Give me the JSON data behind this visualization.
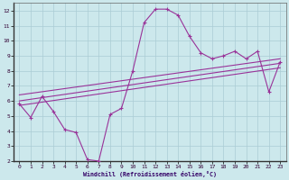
{
  "background_color": "#cce8ec",
  "grid_color": "#aaccd4",
  "line_color": "#993399",
  "xlabel": "Windchill (Refroidissement éolien,°C)",
  "xlim": [
    -0.5,
    23.5
  ],
  "ylim": [
    2,
    12.5
  ],
  "xticks": [
    0,
    1,
    2,
    3,
    4,
    5,
    6,
    7,
    8,
    9,
    10,
    11,
    12,
    13,
    14,
    15,
    16,
    17,
    18,
    19,
    20,
    21,
    22,
    23
  ],
  "yticks": [
    2,
    3,
    4,
    5,
    6,
    7,
    8,
    9,
    10,
    11,
    12
  ],
  "line1_x": [
    0,
    1,
    2,
    3,
    4,
    5,
    6,
    7,
    8,
    9,
    10,
    11,
    12,
    13,
    14,
    15,
    16,
    17,
    18,
    19,
    20,
    21,
    22,
    23
  ],
  "line1_y": [
    5.8,
    4.9,
    6.3,
    5.3,
    4.1,
    3.9,
    2.1,
    2.0,
    5.1,
    5.5,
    8.0,
    11.2,
    12.1,
    12.1,
    11.7,
    10.3,
    9.2,
    8.8,
    9.0,
    9.3,
    8.8,
    9.3,
    6.6,
    8.6
  ],
  "line2_x": [
    0,
    23
  ],
  "line2_y": [
    5.7,
    8.2
  ],
  "line3_x": [
    0,
    23
  ],
  "line3_y": [
    6.0,
    8.5
  ],
  "line4_x": [
    0,
    23
  ],
  "line4_y": [
    6.4,
    8.8
  ]
}
